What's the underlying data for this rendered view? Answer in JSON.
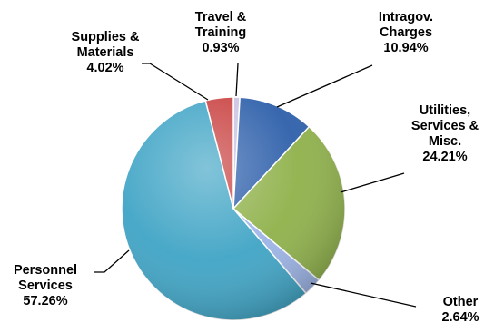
{
  "chart_data": {
    "type": "pie",
    "title": "",
    "start_angle_deg": 0,
    "direction": "clockwise",
    "effects": "3d-bevel",
    "slices": [
      {
        "label": "Travel & Training",
        "lines": [
          "Travel &",
          "Training"
        ],
        "value": 0.93,
        "value_text": "0.93%",
        "color": "#c9c3e3"
      },
      {
        "label": "Intragov. Charges",
        "lines": [
          "Intragov.",
          "Charges"
        ],
        "value": 10.94,
        "value_text": "10.94%",
        "color": "#2d5faa"
      },
      {
        "label": "Utilities, Services & Misc.",
        "lines": [
          "Utilities,",
          "Services &",
          "Misc."
        ],
        "value": 24.21,
        "value_text": "24.21%",
        "color": "#8fb14a"
      },
      {
        "label": "Other",
        "lines": [
          "Other"
        ],
        "value": 2.64,
        "value_text": "2.64%",
        "color": "#9cb4e6"
      },
      {
        "label": "Personnel Services",
        "lines": [
          "Personnel",
          "Services"
        ],
        "value": 57.26,
        "value_text": "57.26%",
        "color": "#3fa4c5"
      },
      {
        "label": "Supplies & Materials",
        "lines": [
          "Supplies &",
          "Materials"
        ],
        "value": 4.02,
        "value_text": "4.02%",
        "color": "#c8403f"
      }
    ]
  }
}
